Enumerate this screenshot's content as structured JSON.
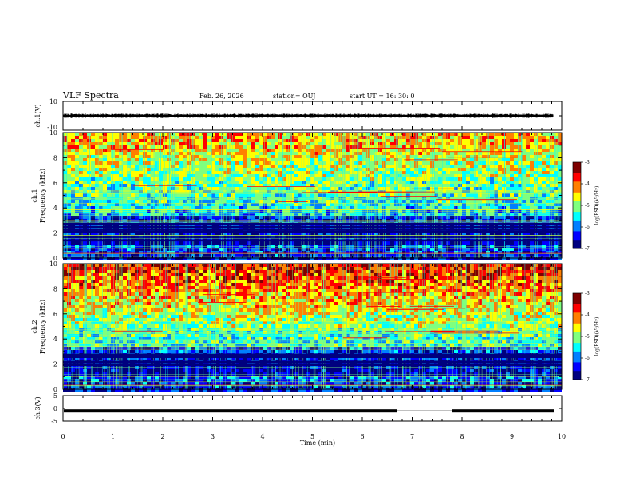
{
  "header": {
    "title": "VLF Spectra",
    "date": "Feb. 26, 2026",
    "station": "station= OUJ",
    "start_ut": "start  UT =   16: 30: 0"
  },
  "chart_data": [
    {
      "type": "line",
      "name": "ch1-waveform",
      "ylabel": "ch.1(V)",
      "ylim": [
        -10,
        10
      ],
      "yticks": [
        "10",
        "-10"
      ],
      "xlim": [
        0,
        10
      ],
      "description_values": {
        "mean_level": 0,
        "amplitude": 1
      }
    },
    {
      "type": "heatmap",
      "name": "ch1-spectrogram",
      "ylabel": "ch.1",
      "ylabel2": "Frequency  (kHz)",
      "ylim": [
        0,
        10
      ],
      "yticks": [
        "0",
        "2",
        "4",
        "6",
        "8",
        "10"
      ],
      "xlim": [
        0,
        10
      ],
      "colorbar": {
        "label": "log(PSD)(V²/Hz)",
        "range": [
          -7,
          -3
        ],
        "ticks": [
          "-3",
          "-4",
          "-5",
          "-6",
          "-7"
        ]
      }
    },
    {
      "type": "heatmap",
      "name": "ch2-spectrogram",
      "ylabel": "ch.2",
      "ylabel2": "Frequency  (kHz)",
      "ylim": [
        0,
        10
      ],
      "yticks": [
        "0",
        "2",
        "4",
        "6",
        "8",
        "10"
      ],
      "xlim": [
        0,
        10
      ],
      "colorbar": {
        "label": "log(PSD)(V²/Hz)",
        "range": [
          -7,
          -3
        ],
        "ticks": [
          "-3",
          "-4",
          "-5",
          "-6",
          "-7"
        ]
      }
    },
    {
      "type": "line",
      "name": "ch3-level",
      "ylabel": "ch.3(V)",
      "ylim": [
        -5,
        5
      ],
      "yticks": [
        "5",
        "0",
        "-5"
      ],
      "xlim": [
        0,
        10
      ],
      "xlabel": "Time  (min)",
      "xticks": [
        "0",
        "1",
        "2",
        "3",
        "4",
        "5",
        "6",
        "7",
        "8",
        "9",
        "10"
      ],
      "level": -1,
      "gap": [
        6.7,
        7.8
      ]
    }
  ],
  "colors": {
    "colormap": [
      "#00007f",
      "#0000ff",
      "#007fff",
      "#00ffff",
      "#7fff7f",
      "#ffff00",
      "#ff7f00",
      "#ff0000",
      "#7f0000"
    ]
  }
}
